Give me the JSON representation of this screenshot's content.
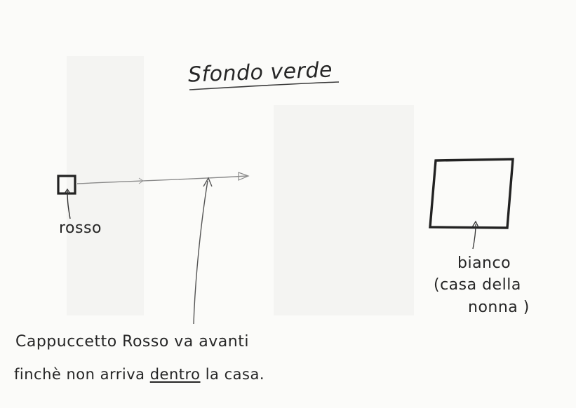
{
  "title": "Sfondo verde",
  "red_square_label": "rosso",
  "white_square_label": "bianco",
  "white_square_note_line1": "(casa della",
  "white_square_note_line2": "nonna )",
  "caption": {
    "line1": "Cappuccetto Rosso va avanti",
    "line2_before": "finchè non arriva ",
    "line2_emphasis": "dentro",
    "line2_after": " la casa."
  }
}
